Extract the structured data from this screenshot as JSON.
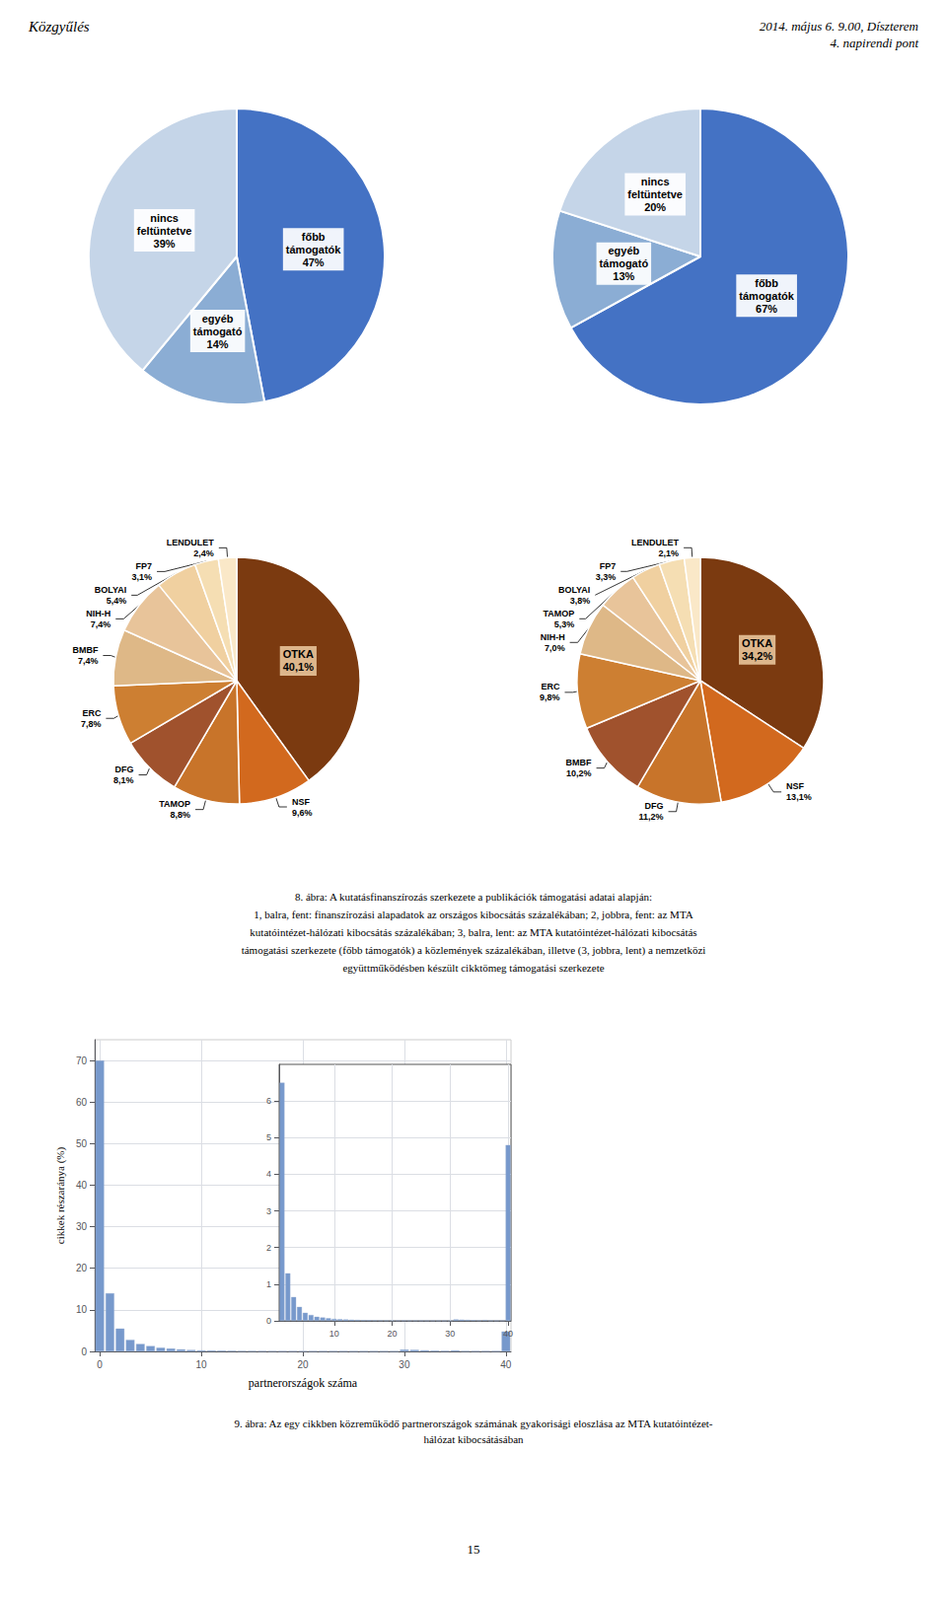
{
  "chart_data": [
    {
      "type": "pie",
      "categories": [
        "főbb\ntámogatók",
        "egyéb\ntámogató",
        "nincs\nfeltüntetve"
      ],
      "values": [
        47,
        14,
        39
      ],
      "value_labels": [
        "47%",
        "14%",
        "39%"
      ],
      "colors": [
        "#4472C4",
        "#8BADD4",
        "#C5D5E8"
      ],
      "data_labels": true,
      "annotations": [
        "Közgyűlés",
        "2014. május 6. 9.00, Díszterem\n4. napirendi pont"
      ]
    },
    {
      "type": "pie",
      "categories": [
        "főbb\ntámogatók",
        "egyéb\ntámogató",
        "nincs\nfeltüntetve"
      ],
      "values": [
        67,
        13,
        20
      ],
      "value_labels": [
        "67%",
        "13%",
        "20%"
      ],
      "colors": [
        "#4472C4",
        "#8BADD4",
        "#C5D5E8"
      ],
      "data_labels": true
    },
    {
      "type": "pie",
      "categories": [
        "OTKA",
        "NSF",
        "TAMOP",
        "DFG",
        "ERC",
        "BMBF",
        "NIH-H",
        "BOLYAI",
        "FP7",
        "LENDULET"
      ],
      "values": [
        40.1,
        9.6,
        8.8,
        8.1,
        7.8,
        7.4,
        7.4,
        5.4,
        3.1,
        2.4
      ],
      "value_labels": [
        "40,1%",
        "9,6%",
        "8,8%",
        "8,1%",
        "7,8%",
        "7,4%",
        "7,4%",
        "5,4%",
        "3,1%",
        "2,4%"
      ],
      "colors": [
        "#7B3A10",
        "#D2691E",
        "#C8742A",
        "#A0522D",
        "#CD7F32",
        "#DEB887",
        "#E8C49A",
        "#F0D0A0",
        "#F5DEB3",
        "#FAE8C8"
      ],
      "data_labels": true
    },
    {
      "type": "pie",
      "categories": [
        "OTKA",
        "NSF",
        "DFG",
        "BMBF",
        "ERC",
        "NIH-H",
        "TAMOP",
        "BOLYAI",
        "FP7",
        "LENDULET"
      ],
      "values": [
        34.2,
        13.1,
        11.2,
        10.2,
        9.8,
        7.0,
        5.3,
        3.8,
        3.3,
        2.1
      ],
      "value_labels": [
        "34,2%",
        "13,1%",
        "11,2%",
        "10,2%",
        "9,8%",
        "7,0%",
        "5,3%",
        "3,8%",
        "3,3%",
        "2,1%"
      ],
      "colors": [
        "#7B3A10",
        "#D2691E",
        "#C8742A",
        "#A0522D",
        "#CD7F32",
        "#DEB887",
        "#E8C49A",
        "#F0D0A0",
        "#F5DEB3",
        "#FAE8C8"
      ],
      "data_labels": true,
      "annotations": [
        "8. ábra: A kutatásfinanszírozás szerkezete a publikációk támogatási adatai alapján:\n1, balra, fent: finanszírozási alapadatok az országos kibocsátás százalékában; 2, jobbra, fent: az MTA\nkutatóintézet-hálózati kibocsátás százalékában; 3, balra, lent: az MTA kutatóintézet-hálózati kibocsátás\ntámogatási szerkezete (főbb támogatók) a közlemények százalékában, illetve (3, jobbra, lent) a nemzetközi\negyüttműködésben készült cikktömeg támogatási szerkezete"
      ]
    },
    {
      "type": "bar",
      "x": [
        0,
        1,
        2,
        3,
        4,
        5,
        6,
        7,
        8,
        9,
        10,
        11,
        12,
        13,
        14,
        15,
        16,
        17,
        18,
        19,
        20,
        21,
        22,
        23,
        24,
        25,
        26,
        27,
        28,
        29,
        30,
        31,
        32,
        33,
        34,
        35,
        36,
        37,
        38,
        39,
        40
      ],
      "values": [
        70.0,
        14.0,
        5.5,
        2.8,
        1.8,
        1.3,
        0.9,
        0.7,
        0.5,
        0.35,
        0.25,
        0.22,
        0.18,
        0.14,
        0.1,
        0.09,
        0.07,
        0.06,
        0.05,
        0.05,
        0.04,
        0.04,
        0.03,
        0.03,
        0.03,
        0.02,
        0.02,
        0.02,
        0.02,
        0.02,
        0.45,
        0.38,
        0.28,
        0.18,
        0.12,
        0.25,
        0.08,
        0.07,
        0.07,
        0.07,
        4.8
      ],
      "color": "#7799CC",
      "xlim": [
        -0.5,
        40.5
      ],
      "xticks": [
        0,
        10,
        20,
        30,
        40
      ],
      "ylim": [
        0,
        75
      ],
      "yticks": [
        0,
        10,
        20,
        30,
        40,
        50,
        60,
        70
      ],
      "grid": true,
      "xlabel": "partnerországok száma",
      "ylabel": "cikkek részaránya (%)",
      "annotations": [
        "9. ábra: Az egy cikkben közreműködő partnerországok számának gyakorisági eloszlása az MTA kutatóintézet-\nhálózat kibocsátásában",
        "15"
      ]
    },
    {
      "type": "bar",
      "x": [
        1,
        2,
        3,
        4,
        5,
        6,
        7,
        8,
        9,
        10,
        11,
        12,
        13,
        14,
        15,
        16,
        17,
        18,
        19,
        20,
        21,
        22,
        23,
        24,
        25,
        26,
        27,
        28,
        29,
        30,
        31,
        32,
        33,
        34,
        35,
        36,
        37,
        38,
        39,
        40
      ],
      "values": [
        6.5,
        1.3,
        0.65,
        0.38,
        0.22,
        0.16,
        0.11,
        0.09,
        0.07,
        0.055,
        0.045,
        0.038,
        0.032,
        0.025,
        0.02,
        0.018,
        0.015,
        0.012,
        0.01,
        0.009,
        0.008,
        0.008,
        0.007,
        0.007,
        0.006,
        0.006,
        0.006,
        0.005,
        0.005,
        0.005,
        0.042,
        0.035,
        0.025,
        0.018,
        0.012,
        0.022,
        0.007,
        0.006,
        0.006,
        4.8
      ],
      "color": "#7799CC",
      "xlim": [
        0.5,
        40.5
      ],
      "xticks": [
        10,
        20,
        30,
        40
      ],
      "ylim": [
        0,
        7
      ],
      "yticks": [
        0,
        1,
        2,
        3,
        4,
        5,
        6
      ],
      "grid": true
    }
  ]
}
